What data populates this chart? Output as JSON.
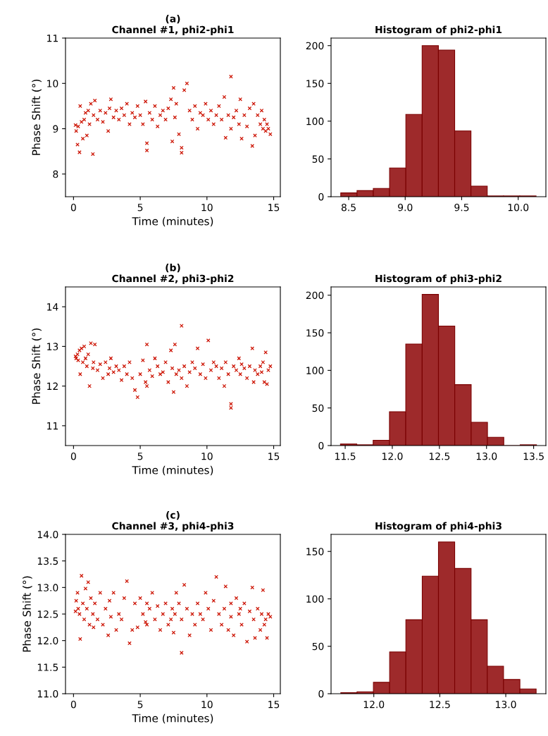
{
  "chart_data": [
    {
      "type": "scatter",
      "title": "(a)\nChannel #1, phi2-phi1",
      "xlabel": "Time (minutes)",
      "ylabel": "Phase Shift (°)",
      "color": "#cc1100",
      "marker": "cross",
      "xlim": [
        -0.6,
        15.5
      ],
      "ylim": [
        7.5,
        11
      ],
      "xticks": [
        0,
        5,
        10,
        15
      ],
      "yticks": [
        8,
        9,
        10,
        11
      ],
      "x": [
        0.15,
        0.2,
        0.3,
        0.35,
        0.45,
        0.5,
        0.6,
        0.7,
        0.8,
        0.9,
        1.0,
        1.1,
        1.2,
        1.3,
        1.45,
        1.5,
        1.6,
        1.8,
        2.0,
        2.2,
        2.4,
        2.6,
        2.7,
        2.8,
        3.0,
        3.2,
        3.4,
        3.6,
        3.8,
        4.0,
        4.2,
        4.4,
        4.6,
        4.8,
        5.0,
        5.2,
        5.4,
        5.5,
        5.5,
        5.7,
        5.9,
        6.1,
        6.3,
        6.5,
        6.7,
        6.9,
        7.1,
        7.3,
        7.4,
        7.5,
        7.6,
        7.7,
        7.9,
        8.1,
        8.1,
        8.3,
        8.5,
        8.7,
        8.9,
        9.1,
        9.3,
        9.5,
        9.7,
        9.9,
        10.1,
        10.3,
        10.5,
        10.7,
        10.9,
        11.1,
        11.3,
        11.4,
        11.6,
        11.8,
        11.8,
        12.0,
        12.2,
        12.4,
        12.5,
        12.6,
        12.8,
        13.0,
        13.2,
        13.4,
        13.5,
        13.6,
        13.8,
        14.0,
        14.1,
        14.2,
        14.3,
        14.4,
        14.5,
        14.6,
        14.75
      ],
      "values": [
        9.08,
        8.95,
        8.65,
        9.05,
        8.48,
        9.5,
        9.15,
        8.78,
        9.2,
        9.35,
        8.85,
        9.4,
        9.1,
        9.55,
        8.44,
        9.3,
        9.62,
        9.2,
        9.4,
        9.15,
        9.35,
        8.95,
        9.45,
        9.65,
        9.25,
        9.4,
        9.2,
        9.45,
        9.3,
        9.55,
        9.1,
        9.35,
        9.25,
        9.5,
        9.3,
        9.1,
        9.6,
        8.68,
        8.52,
        9.35,
        9.2,
        9.5,
        9.05,
        9.3,
        9.4,
        9.2,
        9.45,
        9.65,
        8.72,
        9.9,
        9.25,
        9.55,
        8.88,
        8.58,
        8.47,
        9.85,
        10.0,
        9.4,
        9.2,
        9.5,
        9.0,
        9.35,
        9.3,
        9.55,
        9.2,
        9.4,
        9.1,
        9.3,
        9.5,
        9.2,
        9.7,
        8.8,
        9.3,
        10.15,
        9.0,
        9.25,
        9.4,
        9.1,
        9.65,
        8.78,
        9.3,
        9.05,
        9.45,
        8.62,
        9.55,
        8.85,
        9.3,
        9.1,
        9.4,
        9.0,
        9.2,
        8.95,
        9.1,
        9.0,
        8.88
      ]
    },
    {
      "type": "histogram",
      "title": "Histogram of phi2-phi1",
      "color": "#9e2a2b",
      "xlim": [
        8.344,
        10.245
      ],
      "ylim": [
        0,
        210
      ],
      "xticks": [
        8.5,
        {
          "value": 9.0,
          "label": "9.0"
        },
        9.5,
        {
          "value": 10.0,
          "label": "10.0"
        }
      ],
      "yticks": [
        0,
        50,
        100,
        150,
        200
      ],
      "bins": [
        8.43,
        8.574,
        8.718,
        8.862,
        9.006,
        9.15,
        9.294,
        9.438,
        9.582,
        9.726,
        9.87,
        10.014,
        10.158
      ],
      "values": [
        5,
        8,
        11,
        38,
        109,
        200,
        194,
        87,
        14,
        1,
        1,
        1
      ]
    },
    {
      "type": "scatter",
      "title": "(b)\nChannel #2, phi3-phi2",
      "xlabel": "Time (minutes)",
      "ylabel": "Phase Shift (°)",
      "color": "#cc1100",
      "marker": "cross",
      "xlim": [
        -0.6,
        15.5
      ],
      "ylim": [
        10.5,
        14.5
      ],
      "xticks": [
        0,
        5,
        10,
        15
      ],
      "yticks": [
        11,
        12,
        13,
        14
      ],
      "x": [
        0.15,
        0.2,
        0.3,
        0.35,
        0.45,
        0.5,
        0.6,
        0.7,
        0.8,
        0.9,
        1.0,
        1.1,
        1.2,
        1.3,
        1.45,
        1.5,
        1.6,
        1.8,
        2.0,
        2.2,
        2.4,
        2.6,
        2.7,
        2.8,
        3.0,
        3.2,
        3.4,
        3.6,
        3.8,
        4.0,
        4.2,
        4.4,
        4.6,
        4.8,
        5.0,
        5.2,
        5.4,
        5.5,
        5.5,
        5.7,
        5.9,
        6.1,
        6.3,
        6.5,
        6.7,
        6.9,
        7.1,
        7.3,
        7.4,
        7.5,
        7.6,
        7.7,
        7.9,
        8.1,
        8.1,
        8.3,
        8.5,
        8.7,
        8.9,
        9.1,
        9.3,
        9.5,
        9.7,
        9.9,
        10.1,
        10.3,
        10.5,
        10.7,
        10.9,
        11.1,
        11.3,
        11.4,
        11.6,
        11.8,
        11.8,
        12.0,
        12.2,
        12.4,
        12.5,
        12.6,
        12.8,
        13.0,
        13.2,
        13.4,
        13.5,
        13.6,
        13.8,
        14.0,
        14.1,
        14.2,
        14.3,
        14.4,
        14.5,
        14.6,
        14.75
      ],
      "values": [
        12.75,
        12.7,
        12.8,
        12.65,
        12.9,
        12.3,
        12.95,
        12.6,
        13.0,
        12.7,
        12.5,
        12.8,
        12.0,
        13.08,
        12.45,
        12.6,
        13.05,
        12.4,
        12.55,
        12.2,
        12.6,
        12.3,
        12.45,
        12.7,
        12.35,
        12.5,
        12.4,
        12.15,
        12.5,
        12.3,
        12.6,
        12.2,
        11.9,
        11.72,
        12.3,
        12.65,
        12.1,
        13.05,
        12.0,
        12.4,
        12.25,
        12.7,
        12.5,
        12.3,
        12.35,
        12.6,
        12.1,
        12.9,
        12.45,
        11.85,
        13.05,
        12.3,
        12.4,
        13.52,
        12.2,
        12.5,
        12.0,
        12.35,
        12.6,
        12.45,
        12.95,
        12.3,
        12.55,
        12.2,
        13.15,
        12.4,
        12.6,
        12.5,
        12.2,
        12.45,
        12.0,
        12.6,
        12.3,
        11.55,
        11.45,
        12.5,
        12.4,
        12.7,
        12.3,
        12.55,
        12.45,
        12.2,
        12.5,
        12.95,
        12.1,
        12.4,
        12.3,
        12.5,
        12.35,
        12.6,
        12.1,
        12.85,
        12.05,
        12.4,
        12.5
      ]
    },
    {
      "type": "histogram",
      "title": "Histogram of phi3-phi2",
      "color": "#9e2a2b",
      "xlim": [
        11.35,
        13.63
      ],
      "ylim": [
        0,
        211
      ],
      "xticks": [
        11.5,
        {
          "value": 12.0,
          "label": "12.0"
        },
        12.5,
        {
          "value": 13.0,
          "label": "13.0"
        },
        13.5
      ],
      "yticks": [
        0,
        50,
        100,
        150,
        200
      ],
      "bins": [
        11.45,
        11.623,
        11.797,
        11.97,
        12.143,
        12.317,
        12.49,
        12.663,
        12.837,
        13.01,
        13.183,
        13.357,
        13.53
      ],
      "values": [
        2,
        1,
        7,
        45,
        135,
        201,
        159,
        81,
        31,
        11,
        0,
        1
      ]
    },
    {
      "type": "scatter",
      "title": "(c)\nChannel #3, phi4-phi3",
      "xlabel": "Time (minutes)",
      "ylabel": "Phase Shift (°)",
      "color": "#cc1100",
      "marker": "cross",
      "xlim": [
        -0.6,
        15.5
      ],
      "ylim": [
        11,
        14
      ],
      "xticks": [
        0,
        5,
        10,
        15
      ],
      "yticks": [
        {
          "value": 11,
          "label": "11.0"
        },
        11.5,
        {
          "value": 12,
          "label": "12.0"
        },
        12.5,
        {
          "value": 13,
          "label": "13.0"
        },
        13.5,
        {
          "value": 14,
          "label": "14.0"
        }
      ],
      "x": [
        0.15,
        0.2,
        0.3,
        0.35,
        0.45,
        0.5,
        0.6,
        0.7,
        0.8,
        0.9,
        1.0,
        1.1,
        1.2,
        1.3,
        1.45,
        1.5,
        1.6,
        1.8,
        2.0,
        2.2,
        2.4,
        2.6,
        2.7,
        2.8,
        3.0,
        3.2,
        3.4,
        3.6,
        3.8,
        4.0,
        4.2,
        4.4,
        4.6,
        4.8,
        5.0,
        5.2,
        5.4,
        5.5,
        5.5,
        5.7,
        5.9,
        6.1,
        6.3,
        6.5,
        6.7,
        6.9,
        7.1,
        7.3,
        7.4,
        7.5,
        7.6,
        7.7,
        7.9,
        8.1,
        8.1,
        8.3,
        8.5,
        8.7,
        8.9,
        9.1,
        9.3,
        9.5,
        9.7,
        9.9,
        10.1,
        10.3,
        10.5,
        10.7,
        10.9,
        11.1,
        11.3,
        11.4,
        11.6,
        11.8,
        11.8,
        12.0,
        12.2,
        12.4,
        12.5,
        12.6,
        12.8,
        13.0,
        13.2,
        13.4,
        13.5,
        13.6,
        13.8,
        14.0,
        14.1,
        14.2,
        14.3,
        14.4,
        14.5,
        14.6,
        14.75
      ],
      "values": [
        12.55,
        12.75,
        12.9,
        12.6,
        12.5,
        12.03,
        13.22,
        12.7,
        12.4,
        12.98,
        12.6,
        13.1,
        12.3,
        12.8,
        12.5,
        12.25,
        12.7,
        12.4,
        12.9,
        12.3,
        12.6,
        12.1,
        12.75,
        12.45,
        12.9,
        12.2,
        12.5,
        12.4,
        12.8,
        13.12,
        11.95,
        12.2,
        12.7,
        12.25,
        12.8,
        12.5,
        12.35,
        12.7,
        12.3,
        12.6,
        12.9,
        12.4,
        12.65,
        12.2,
        12.5,
        12.7,
        12.3,
        12.4,
        12.6,
        12.15,
        12.5,
        12.9,
        12.7,
        11.77,
        12.4,
        13.05,
        12.6,
        12.1,
        12.5,
        12.3,
        12.7,
        12.5,
        12.4,
        12.9,
        12.6,
        12.2,
        12.75,
        13.2,
        12.5,
        12.3,
        12.6,
        13.02,
        12.2,
        12.45,
        12.7,
        12.1,
        12.8,
        12.5,
        12.6,
        12.3,
        12.7,
        11.98,
        12.55,
        13.0,
        12.4,
        12.05,
        12.6,
        12.2,
        12.5,
        12.95,
        12.3,
        12.4,
        12.05,
        12.5,
        12.45
      ]
    },
    {
      "type": "histogram",
      "title": "Histogram of phi4-phi3",
      "color": "#9e2a2b",
      "xlim": [
        11.676,
        13.304
      ],
      "ylim": [
        0,
        168
      ],
      "xticks": [
        {
          "value": 12.0,
          "label": "12.0"
        },
        12.5,
        {
          "value": 13.0,
          "label": "13.0"
        }
      ],
      "yticks": [
        0,
        50,
        100,
        150
      ],
      "bins": [
        11.75,
        11.873,
        11.997,
        12.12,
        12.243,
        12.367,
        12.49,
        12.613,
        12.737,
        12.86,
        12.983,
        13.107,
        13.23
      ],
      "values": [
        1,
        2,
        12,
        44,
        78,
        124,
        160,
        132,
        78,
        29,
        15,
        5
      ]
    }
  ]
}
